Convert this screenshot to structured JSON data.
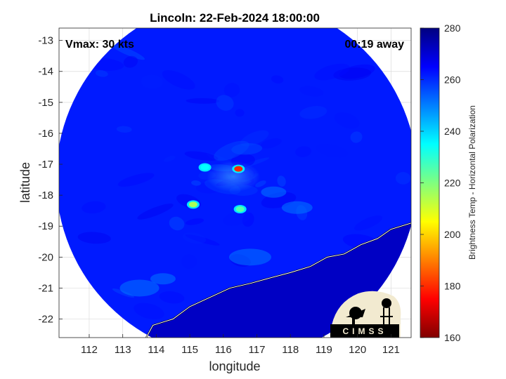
{
  "chart_data": {
    "type": "heatmap",
    "title": "Lincoln: 22-Feb-2024 18:00:00",
    "xlabel": "longitude",
    "ylabel": "latitude",
    "xlim": [
      111.1,
      121.6
    ],
    "ylim": [
      -22.6,
      -12.6
    ],
    "xticks": [
      112,
      113,
      114,
      115,
      116,
      117,
      118,
      119,
      120,
      121
    ],
    "yticks": [
      -13,
      -14,
      -15,
      -16,
      -17,
      -18,
      -19,
      -20,
      -21,
      -22
    ],
    "grid": true,
    "annotations": {
      "vmax": "Vmax: 30 kts",
      "time_away": "00:19 away"
    },
    "colorbar": {
      "label": "Brightness Temp - Horizontal Polarization",
      "min": 160,
      "max": 280,
      "ticks": [
        280,
        260,
        240,
        220,
        200,
        180,
        160
      ],
      "colormap": "jet"
    },
    "swath": {
      "center_lon": 116.4,
      "center_lat": -17.45,
      "radius_deg": 5.6
    },
    "warm_cores": [
      {
        "lon": 116.45,
        "lat": -17.15,
        "tb": 180
      },
      {
        "lon": 115.45,
        "lat": -17.1,
        "tb": 235
      },
      {
        "lon": 115.1,
        "lat": -18.3,
        "tb": 215
      },
      {
        "lon": 116.5,
        "lat": -18.45,
        "tb": 225
      }
    ],
    "land_tb": 272,
    "ocean_tb": 262
  },
  "logo": {
    "text": "CIMSS"
  },
  "colors": {
    "land": "#1a30c0",
    "ocean": "#1848e8",
    "background": "#ffffff"
  }
}
